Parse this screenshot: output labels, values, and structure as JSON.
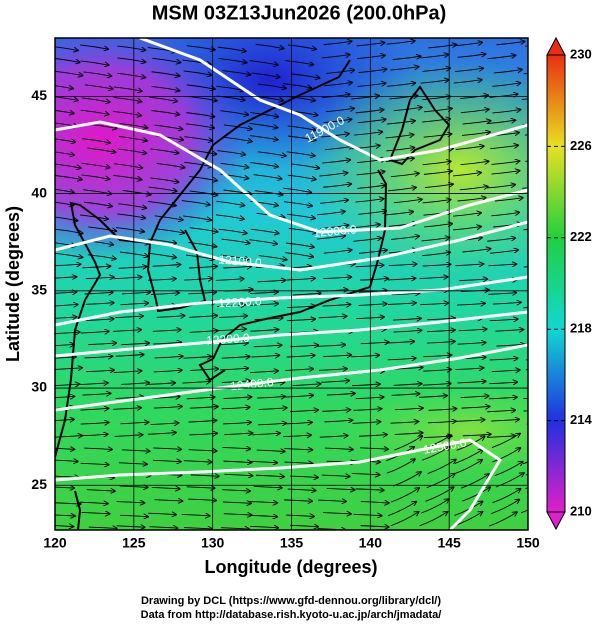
{
  "title": "MSM 03Z13Jun2026 (200.0hPa)",
  "x_label": "Longitude (degrees)",
  "y_label": "Latitude  (degrees)",
  "xlim": [
    120,
    150
  ],
  "xticks": [
    120,
    125,
    130,
    135,
    140,
    145,
    150
  ],
  "ylim": [
    22.7,
    48
  ],
  "yticks": [
    25,
    30,
    35,
    40,
    45
  ],
  "colorbar": {
    "lim": [
      210,
      230
    ],
    "ticks": [
      210,
      214,
      218,
      222,
      226,
      230
    ],
    "colors": [
      "#e020c8",
      "#2030e0",
      "#10d8d0",
      "#20d040",
      "#e8e020",
      "#e83010"
    ]
  },
  "contours": [
    {
      "value": 11900,
      "label": "11900.0"
    },
    {
      "value": 12000,
      "label": "12000.0"
    },
    {
      "value": 12100,
      "label": "12100.0"
    },
    {
      "value": 12200,
      "label": "12200.0"
    },
    {
      "value": 12300,
      "label": "12300.0"
    },
    {
      "value": 12400,
      "label": "12400.0"
    },
    {
      "value": 12500,
      "label": "12500.0"
    }
  ],
  "credits": [
    "Drawing by DCL (https://www.gfd-dennou.org/library/dcl/)",
    "Data from http://database.rish.kyoto-u.ac.jp/arch/jmadata/"
  ]
}
